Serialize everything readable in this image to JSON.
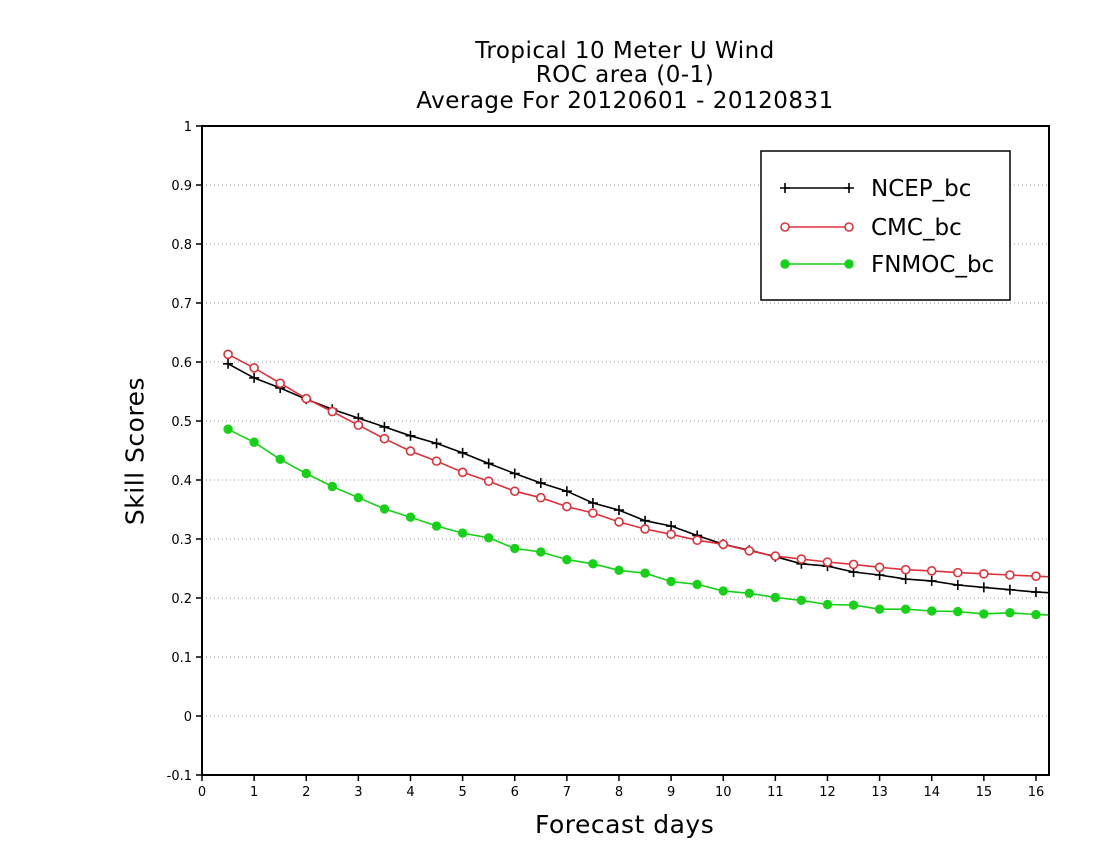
{
  "chart_data": {
    "type": "line",
    "title_lines": [
      "Tropical 10 Meter U Wind",
      "ROC area (0-1)",
      "Average For 20120601 - 20120831"
    ],
    "xlabel": "Forecast days",
    "ylabel": "Skill Scores",
    "xlim": [
      0,
      16.25
    ],
    "ylim": [
      -0.1,
      1
    ],
    "xticks": [
      0,
      1,
      2,
      3,
      4,
      5,
      6,
      7,
      8,
      9,
      10,
      11,
      12,
      13,
      14,
      15,
      16
    ],
    "yticks": [
      -0.1,
      0,
      0.1,
      0.2,
      0.3,
      0.4,
      0.5,
      0.6,
      0.7,
      0.8,
      0.9,
      1
    ],
    "ytick_labels": [
      "-0.1",
      "0",
      "0.1",
      "0.2",
      "0.3",
      "0.4",
      "0.5",
      "0.6",
      "0.7",
      "0.8",
      "0.9",
      "1"
    ],
    "grid": "horizontal dotted",
    "legend_position": "top-right",
    "x": [
      0.5,
      1,
      1.5,
      2,
      2.5,
      3,
      3.5,
      4,
      4.5,
      5,
      5.5,
      6,
      6.5,
      7,
      7.5,
      8,
      8.5,
      9,
      9.5,
      10,
      10.5,
      11,
      11.5,
      12,
      12.5,
      13,
      13.5,
      14,
      14.5,
      15,
      15.5,
      16,
      16.25
    ],
    "series": [
      {
        "name": "NCEP_bc",
        "color": "#000000",
        "marker": "plus",
        "values": [
          0.597,
          0.573,
          0.556,
          0.537,
          0.52,
          0.505,
          0.49,
          0.475,
          0.462,
          0.446,
          0.428,
          0.411,
          0.395,
          0.381,
          0.361,
          0.349,
          0.331,
          0.322,
          0.306,
          0.291,
          0.281,
          0.27,
          0.258,
          0.254,
          0.244,
          0.239,
          0.232,
          0.229,
          0.222,
          0.218,
          0.214,
          0.21,
          0.209
        ]
      },
      {
        "name": "CMC_bc",
        "color": "#e0303a",
        "marker": "open-circle",
        "values": [
          0.613,
          0.59,
          0.564,
          0.538,
          0.516,
          0.493,
          0.47,
          0.449,
          0.432,
          0.413,
          0.398,
          0.381,
          0.37,
          0.355,
          0.344,
          0.329,
          0.317,
          0.308,
          0.298,
          0.291,
          0.28,
          0.271,
          0.266,
          0.261,
          0.257,
          0.252,
          0.248,
          0.246,
          0.243,
          0.241,
          0.239,
          0.237,
          0.236
        ]
      },
      {
        "name": "FNMOC_bc",
        "color": "#16d216",
        "marker": "filled-circle",
        "values": [
          0.486,
          0.464,
          0.435,
          0.411,
          0.389,
          0.37,
          0.351,
          0.337,
          0.322,
          0.31,
          0.302,
          0.284,
          0.278,
          0.265,
          0.258,
          0.247,
          0.242,
          0.228,
          0.223,
          0.212,
          0.208,
          0.201,
          0.196,
          0.189,
          0.188,
          0.181,
          0.181,
          0.178,
          0.177,
          0.173,
          0.175,
          0.172,
          0.171
        ]
      }
    ]
  }
}
